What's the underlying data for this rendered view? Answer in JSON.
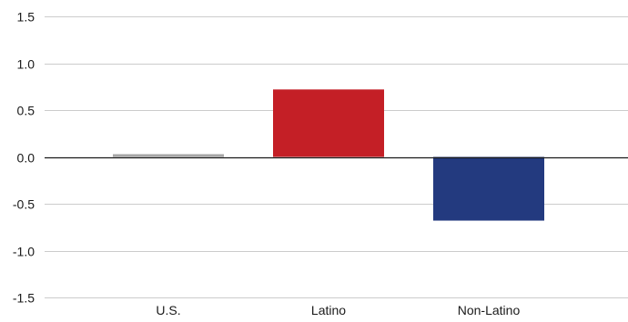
{
  "chart_data": {
    "type": "bar",
    "title": "",
    "xlabel": "",
    "ylabel": "",
    "categories": [
      "U.S.",
      "Latino",
      "Non-Latino"
    ],
    "values": [
      0.02,
      0.72,
      -0.68
    ],
    "colors": [
      "#a6a6a6",
      "#c41f26",
      "#233a7f"
    ],
    "ylim": [
      -1.5,
      1.5
    ],
    "y_ticks": [
      1.5,
      1.0,
      0.5,
      0.0,
      -0.5,
      -1.0,
      -1.5
    ],
    "y_tick_labels": [
      "1.5",
      "1.0",
      "0.5",
      "0.0",
      "-0.5",
      "-1.0",
      "-1.5"
    ],
    "grid": true,
    "legend": "none"
  },
  "colors": {
    "gridline": "#cccccc",
    "zero_line": "#1a1a1a",
    "text": "#1a1a1a"
  }
}
